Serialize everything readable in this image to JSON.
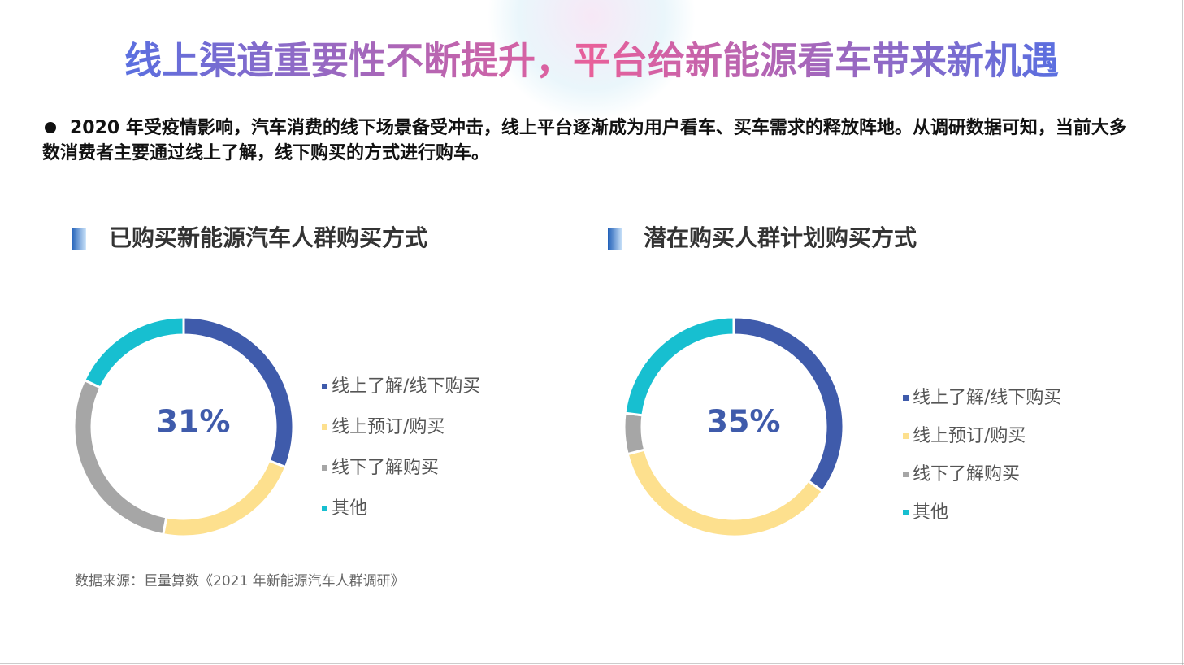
{
  "title": "线上渠道重要性不断提升，平台给新能源看车带来新机遇",
  "bullet": "2020 年受疫情影响，汽车消费的线下场景备受冲击，线上平台逐渐成为用户看车、买车需求的释放阵地。从调研数据可知，当前大多数消费者主要通过线上了解，线下购买的方式进行购车。",
  "source": "数据来源：巨量算数《2021 年新能源汽车人群调研》",
  "chart_data": [
    {
      "type": "donut",
      "title": "已购买新能源汽车人群购买方式",
      "categories": [
        "线上了解/线下购买",
        "线上预订/购买",
        "线下了解购买",
        "其他"
      ],
      "values": [
        31,
        22,
        29,
        18
      ],
      "value_labels": [
        "31%",
        null,
        null,
        null
      ],
      "colors": [
        "#3f5bab",
        "#fde08e",
        "#a6a6a6",
        "#17bfd0"
      ]
    },
    {
      "type": "donut",
      "title": "潜在购买人群计划购买方式",
      "categories": [
        "线上了解/线下购买",
        "线上预订/购买",
        "线下了解购买",
        "其他"
      ],
      "values": [
        35,
        36,
        6,
        23
      ],
      "value_labels": [
        "35%",
        null,
        null,
        null
      ],
      "colors": [
        "#3f5bab",
        "#fde08e",
        "#a6a6a6",
        "#17bfd0"
      ]
    }
  ]
}
